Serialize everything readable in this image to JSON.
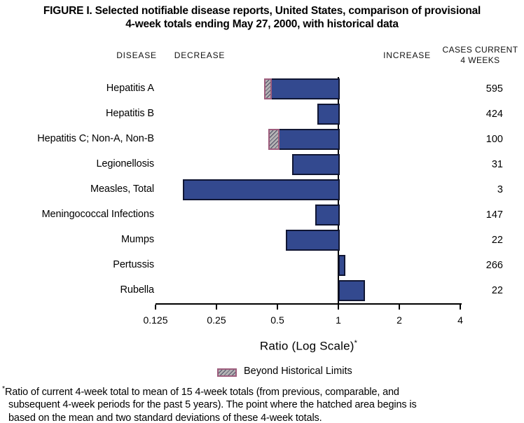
{
  "title": {
    "line1": "FIGURE I. Selected notifiable disease reports, United States, comparison of provisional",
    "line2": "4-week totals ending May 27, 2000, with historical data"
  },
  "header": {
    "disease": "DISEASE",
    "decrease": "DECREASE",
    "increase": "INCREASE",
    "cases_line1": "CASES CURRENT",
    "cases_line2": "4 WEEKS"
  },
  "chart_data": {
    "type": "bar",
    "orientation": "horizontal",
    "scale": "log2",
    "baseline": 1,
    "title": "FIGURE I. Selected notifiable disease reports, United States, comparison of provisional 4-week totals ending May 27, 2000, with historical data",
    "xlabel": "Ratio (Log Scale)*",
    "xlabel_text": "Ratio (Log Scale)",
    "xlabel_sup": "*",
    "axis": {
      "ticks": [
        0.125,
        0.25,
        0.5,
        1,
        2,
        4
      ],
      "tick_labels": [
        "0.125",
        "0.25",
        "0.5",
        "1",
        "2",
        "4"
      ],
      "range": [
        0.125,
        4
      ],
      "grid": false
    },
    "rows": [
      {
        "disease": "Hepatitis A",
        "ratio": 0.43,
        "beyond_limit_to": 0.47,
        "cases": "595"
      },
      {
        "disease": "Hepatitis B",
        "ratio": 0.79,
        "beyond_limit_to": null,
        "cases": "424"
      },
      {
        "disease": "Hepatitis C; Non-A, Non-B",
        "ratio": 0.45,
        "beyond_limit_to": 0.51,
        "cases": "100"
      },
      {
        "disease": "Legionellosis",
        "ratio": 0.59,
        "beyond_limit_to": null,
        "cases": "31"
      },
      {
        "disease": "Measles, Total",
        "ratio": 0.17,
        "beyond_limit_to": null,
        "cases": "3"
      },
      {
        "disease": "Meningococcal Infections",
        "ratio": 0.77,
        "beyond_limit_to": null,
        "cases": "147"
      },
      {
        "disease": "Mumps",
        "ratio": 0.55,
        "beyond_limit_to": null,
        "cases": "22"
      },
      {
        "disease": "Pertussis",
        "ratio": 1.07,
        "beyond_limit_to": null,
        "cases": "266"
      },
      {
        "disease": "Rubella",
        "ratio": 1.33,
        "beyond_limit_to": null,
        "cases": "22"
      }
    ],
    "legend": {
      "label": "Beyond Historical Limits",
      "position": "bottom"
    }
  },
  "colors": {
    "bar_fill": "#33498f",
    "bar_border": "#101633",
    "hatch_fill": "#b4b2b4",
    "hatch_border": "#9e5d7d",
    "axis": "#000000",
    "background": "#ffffff"
  },
  "footnote": {
    "marker": "*",
    "line1": "Ratio of current 4-week total to mean of 15 4-week totals (from previous, comparable, and",
    "line2": "subsequent 4-week periods for the past 5 years). The point where the hatched area begins is",
    "line3": "based on the mean and two standard deviations of these 4-week totals."
  }
}
